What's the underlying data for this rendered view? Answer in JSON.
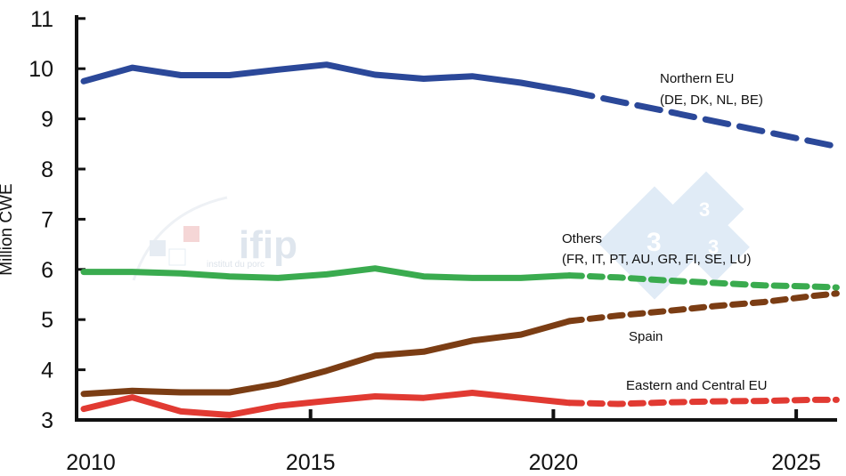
{
  "chart_data": {
    "type": "line",
    "title": "",
    "xlabel": "",
    "ylabel": "Million CWE",
    "xlim": [
      2010,
      2025.5
    ],
    "ylim": [
      3,
      11
    ],
    "x_ticks": [
      2010,
      2015,
      2020,
      2025
    ],
    "y_ticks": [
      3,
      4,
      5,
      6,
      7,
      8,
      9,
      10,
      11
    ],
    "grid": false,
    "colors": {
      "northern": "#2b4899",
      "others": "#3aab4f",
      "spain": "#7b3d14",
      "eastern": "#e13a32",
      "axis": "#111111"
    },
    "series": [
      {
        "key": "northern",
        "name": "Northern EU (DE, DK, NL, BE)",
        "label_lines": [
          "Northern EU",
          "(DE, DK, NL, BE)"
        ],
        "x": [
          2010,
          2011,
          2012,
          2013,
          2014,
          2015,
          2016,
          2017,
          2018,
          2019,
          2020,
          2021,
          2022,
          2023,
          2024,
          2025,
          2025.5
        ],
        "values": [
          9.75,
          10.02,
          9.87,
          9.87,
          9.98,
          10.08,
          9.88,
          9.8,
          9.85,
          9.72,
          9.55,
          9.35,
          9.15,
          8.95,
          8.75,
          8.55,
          8.45
        ],
        "projection_start_index": 10
      },
      {
        "key": "others",
        "name": "Others (FR, IT, PT, AU, GR, FI, SE, LU)",
        "label_lines": [
          "Others",
          "(FR, IT, PT, AU, GR, FI, SE, LU)"
        ],
        "x": [
          2010,
          2011,
          2012,
          2013,
          2014,
          2015,
          2016,
          2017,
          2018,
          2019,
          2020,
          2021,
          2022,
          2023,
          2024,
          2025,
          2025.5
        ],
        "values": [
          5.95,
          5.95,
          5.92,
          5.86,
          5.83,
          5.9,
          6.02,
          5.86,
          5.83,
          5.83,
          5.88,
          5.84,
          5.78,
          5.73,
          5.68,
          5.66,
          5.64
        ],
        "projection_start_index": 10
      },
      {
        "key": "spain",
        "name": "Spain",
        "label_lines": [
          "Spain"
        ],
        "x": [
          2010,
          2011,
          2012,
          2013,
          2014,
          2015,
          2016,
          2017,
          2018,
          2019,
          2020,
          2021,
          2022,
          2023,
          2024,
          2025,
          2025.5
        ],
        "values": [
          3.52,
          3.58,
          3.55,
          3.55,
          3.72,
          3.98,
          4.28,
          4.36,
          4.58,
          4.7,
          4.97,
          5.08,
          5.17,
          5.27,
          5.35,
          5.47,
          5.52
        ],
        "projection_start_index": 10
      },
      {
        "key": "eastern",
        "name": "Eastern and Central EU",
        "label_lines": [
          "Eastern and Central EU"
        ],
        "x": [
          2010,
          2011,
          2012,
          2013,
          2014,
          2015,
          2016,
          2017,
          2018,
          2019,
          2020,
          2021,
          2022,
          2023,
          2024,
          2025,
          2025.5
        ],
        "values": [
          3.22,
          3.45,
          3.17,
          3.1,
          3.28,
          3.38,
          3.47,
          3.44,
          3.54,
          3.44,
          3.34,
          3.32,
          3.35,
          3.37,
          3.38,
          3.4,
          3.4
        ],
        "projection_start_index": 10
      }
    ]
  },
  "watermark": {
    "brand": "ifip",
    "tagline": "institut du porc",
    "badge_digits": [
      "3",
      "3",
      "3"
    ]
  }
}
